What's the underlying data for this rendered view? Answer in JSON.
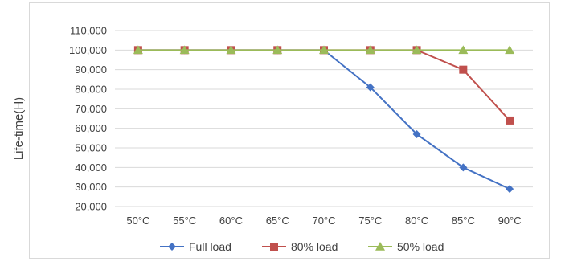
{
  "chart_data": {
    "type": "line",
    "title": "",
    "xlabel": "",
    "ylabel": "Life-time(H)",
    "categories": [
      "50°C",
      "55°C",
      "60°C",
      "65°C",
      "70°C",
      "75°C",
      "80°C",
      "85°C",
      "90°C"
    ],
    "ylim": [
      20000,
      110000
    ],
    "ytick_step": 10000,
    "y_tick_labels": [
      "20,000",
      "30,000",
      "40,000",
      "50,000",
      "60,000",
      "70,000",
      "80,000",
      "90,000",
      "100,000",
      "110,000"
    ],
    "grid": "horizontal",
    "legend_position": "bottom",
    "series": [
      {
        "name": "Full load",
        "color": "#4472C4",
        "marker": "diamond",
        "values": [
          100000,
          100000,
          100000,
          100000,
          100000,
          81000,
          57000,
          40000,
          29000
        ]
      },
      {
        "name": "80% load",
        "color": "#C0504D",
        "marker": "square",
        "values": [
          100000,
          100000,
          100000,
          100000,
          100000,
          100000,
          100000,
          90000,
          64000
        ]
      },
      {
        "name": "50% load",
        "color": "#9BBB59",
        "marker": "triangle",
        "values": [
          100000,
          100000,
          100000,
          100000,
          100000,
          100000,
          100000,
          100000,
          100000
        ]
      }
    ]
  }
}
